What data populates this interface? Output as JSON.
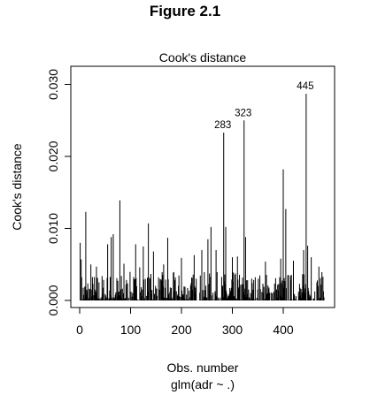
{
  "figure_title": "Figure 2.1",
  "chart_data": {
    "type": "bar",
    "title": "Cook's distance",
    "xlabel": "Obs. number",
    "ylabel": "Cook's distance",
    "subtitle": "glm(adr ~ .)",
    "xlim": [
      0,
      480
    ],
    "ylim": [
      0,
      0.031
    ],
    "xticks": [
      0,
      100,
      200,
      300,
      400
    ],
    "yticks": [
      0.0,
      0.01,
      0.02,
      0.03
    ],
    "ytick_labels": [
      "0.000",
      "0.010",
      "0.020",
      "0.030"
    ],
    "n_obs": 480,
    "grid": false,
    "annotations": [
      {
        "label": "283",
        "x": 283,
        "y": 0.0233
      },
      {
        "label": "323",
        "x": 323,
        "y": 0.025
      },
      {
        "label": "445",
        "x": 445,
        "y": 0.0287
      }
    ],
    "spikes": [
      {
        "x": 1,
        "y": 0.008
      },
      {
        "x": 3,
        "y": 0.0057
      },
      {
        "x": 12,
        "y": 0.0123
      },
      {
        "x": 22,
        "y": 0.005
      },
      {
        "x": 33,
        "y": 0.0047
      },
      {
        "x": 55,
        "y": 0.0078
      },
      {
        "x": 62,
        "y": 0.0088
      },
      {
        "x": 66,
        "y": 0.0092
      },
      {
        "x": 79,
        "y": 0.0139
      },
      {
        "x": 87,
        "y": 0.0051
      },
      {
        "x": 110,
        "y": 0.0078
      },
      {
        "x": 118,
        "y": 0.0046
      },
      {
        "x": 125,
        "y": 0.0075
      },
      {
        "x": 135,
        "y": 0.0107
      },
      {
        "x": 145,
        "y": 0.0068
      },
      {
        "x": 165,
        "y": 0.005
      },
      {
        "x": 173,
        "y": 0.0087
      },
      {
        "x": 200,
        "y": 0.0059
      },
      {
        "x": 225,
        "y": 0.0063
      },
      {
        "x": 240,
        "y": 0.007
      },
      {
        "x": 252,
        "y": 0.0085
      },
      {
        "x": 258,
        "y": 0.0102
      },
      {
        "x": 268,
        "y": 0.007
      },
      {
        "x": 283,
        "y": 0.0233
      },
      {
        "x": 287,
        "y": 0.0102
      },
      {
        "x": 300,
        "y": 0.006
      },
      {
        "x": 310,
        "y": 0.0061
      },
      {
        "x": 323,
        "y": 0.025
      },
      {
        "x": 326,
        "y": 0.0088
      },
      {
        "x": 365,
        "y": 0.0054
      },
      {
        "x": 395,
        "y": 0.0058
      },
      {
        "x": 400,
        "y": 0.0182
      },
      {
        "x": 405,
        "y": 0.0127
      },
      {
        "x": 420,
        "y": 0.0055
      },
      {
        "x": 440,
        "y": 0.007
      },
      {
        "x": 445,
        "y": 0.0287
      },
      {
        "x": 448,
        "y": 0.0076
      },
      {
        "x": 455,
        "y": 0.006
      },
      {
        "x": 470,
        "y": 0.0047
      },
      {
        "x": 478,
        "y": 0.0033
      }
    ],
    "baseline_noise_max": 0.004,
    "bar_color": "#000000"
  }
}
